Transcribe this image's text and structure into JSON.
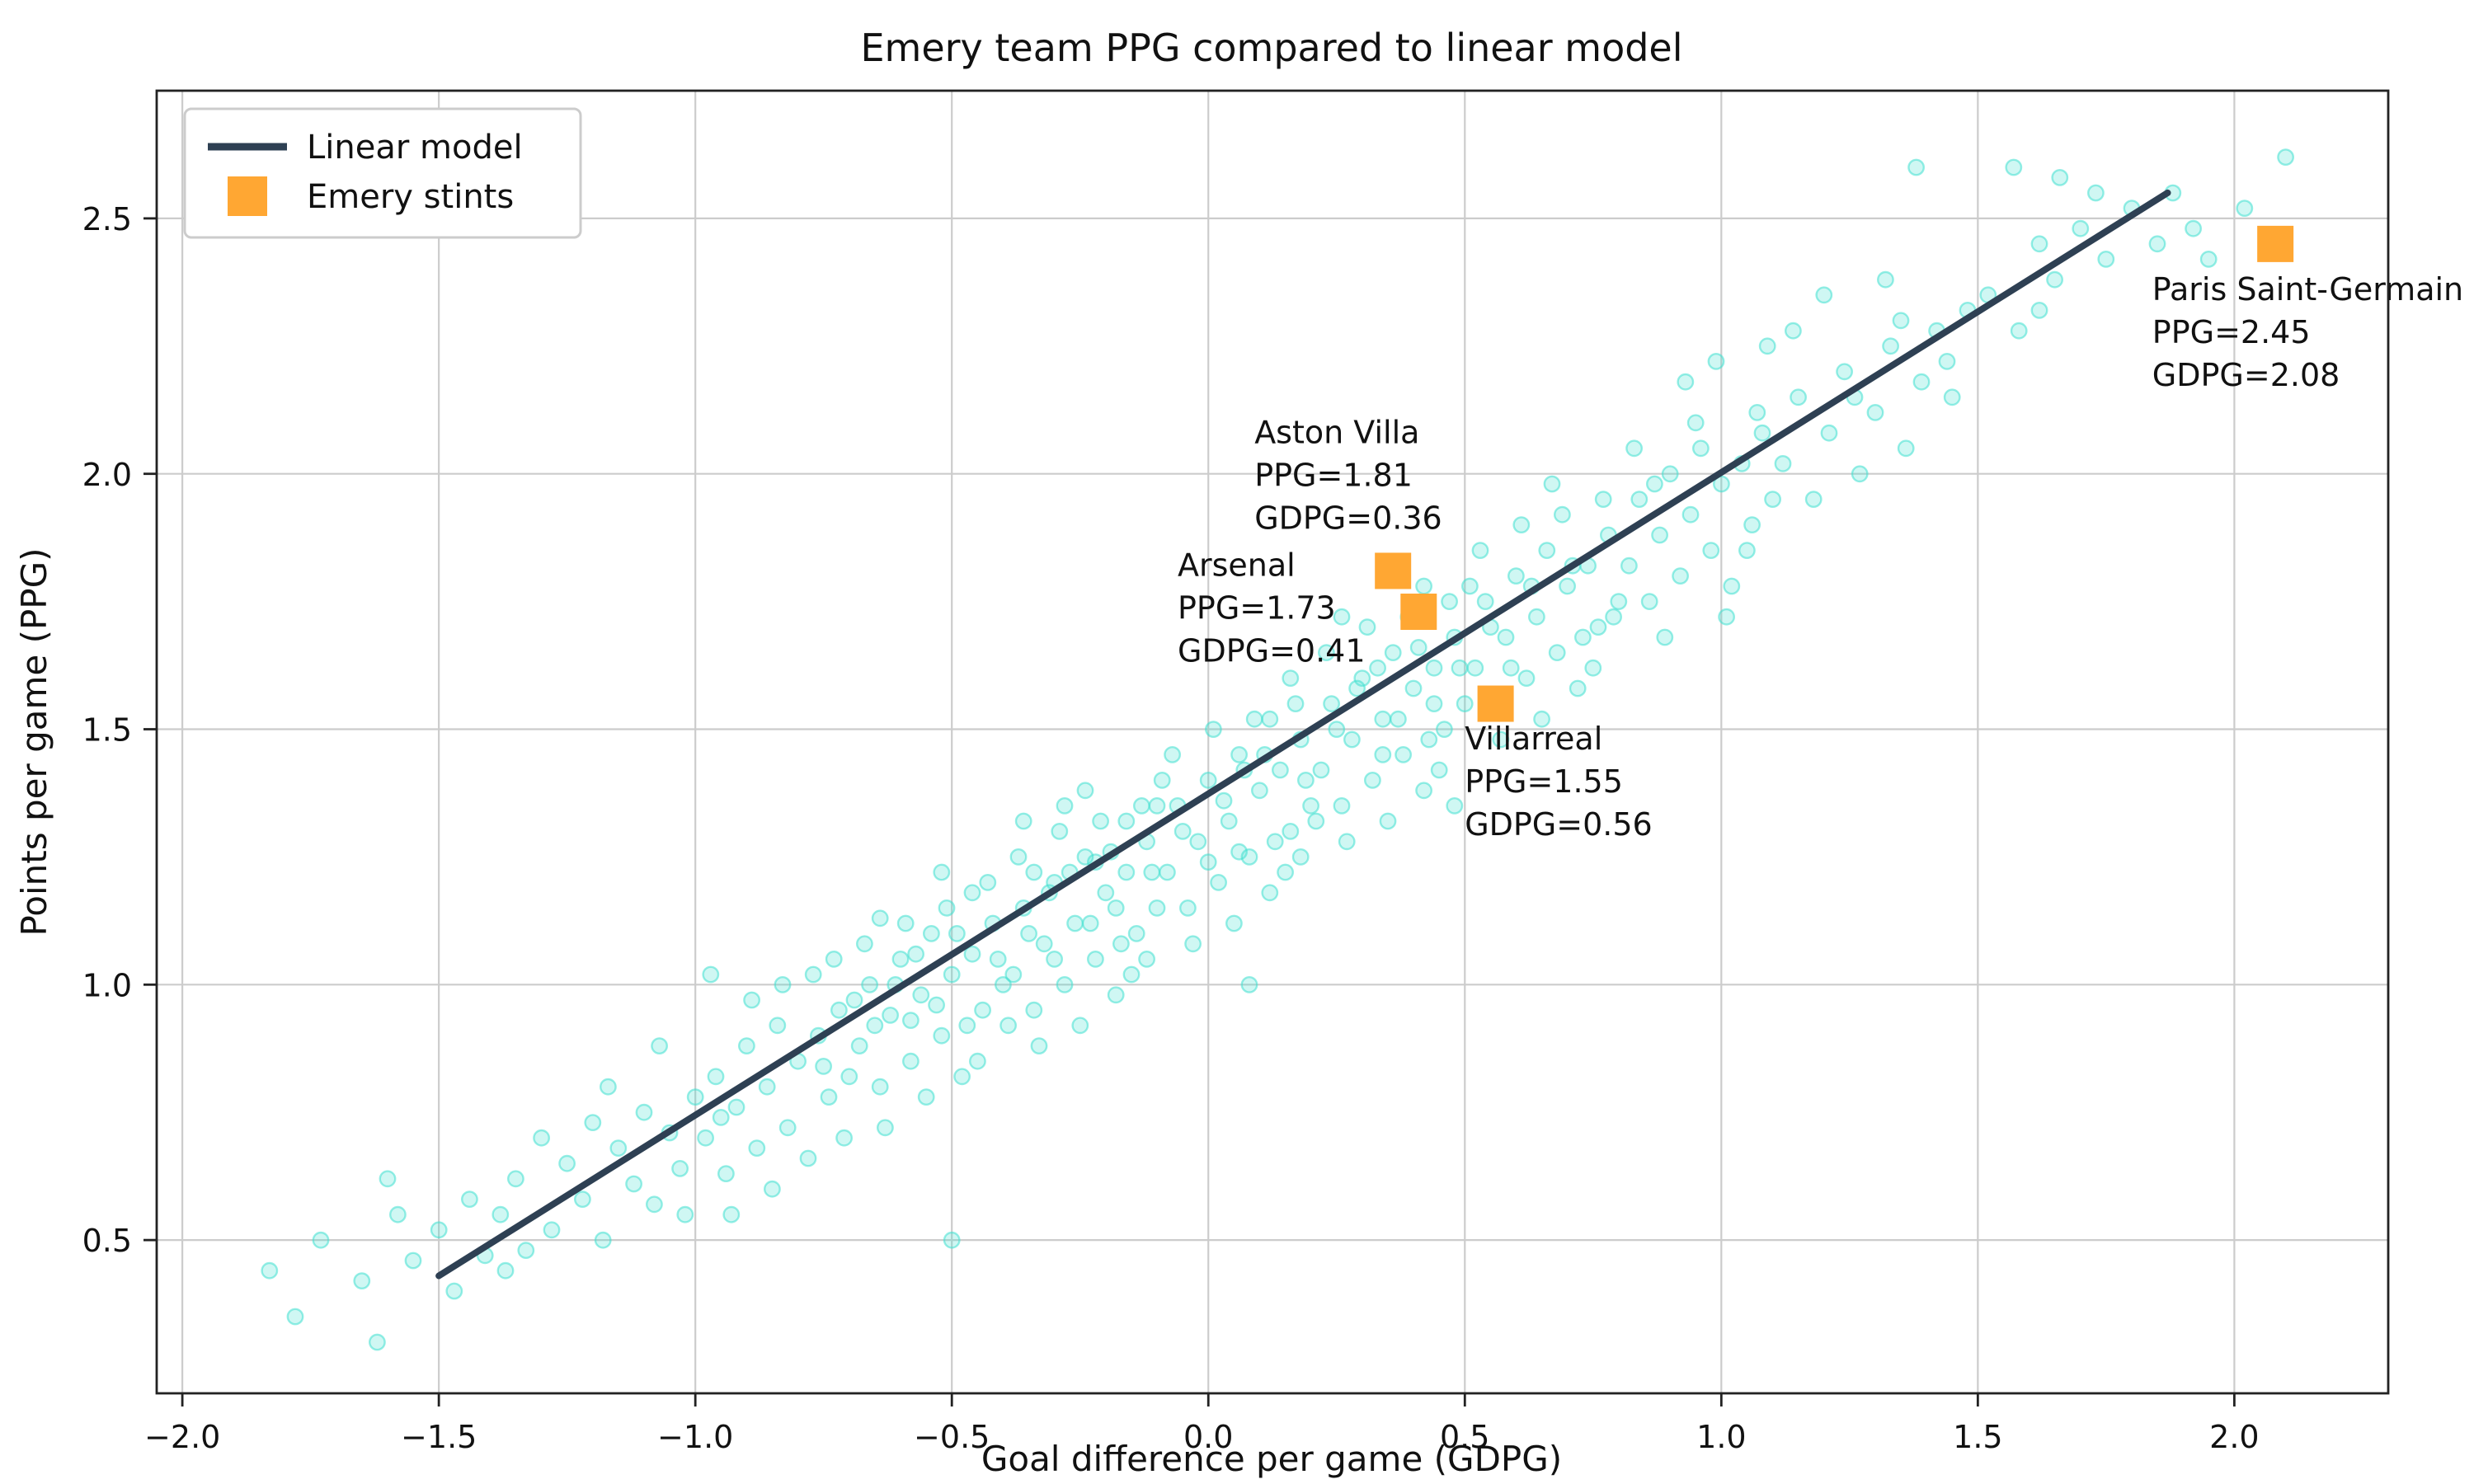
{
  "chart_data": {
    "type": "scatter",
    "title": "Emery team PPG compared to linear model",
    "xlabel": "Goal difference per game (GDPG)",
    "ylabel": "Points per game (PPG)",
    "xlim": [
      -2.05,
      2.3
    ],
    "ylim": [
      0.2,
      2.75
    ],
    "xticks": [
      -2.0,
      -1.5,
      -1.0,
      -0.5,
      0.0,
      0.5,
      1.0,
      1.5,
      2.0
    ],
    "xtick_labels": [
      "−2.0",
      "−1.5",
      "−1.0",
      "−0.5",
      "0.0",
      "0.5",
      "1.0",
      "1.5",
      "2.0"
    ],
    "yticks": [
      0.5,
      1.0,
      1.5,
      2.0,
      2.5
    ],
    "ytick_labels": [
      "0.5",
      "1.0",
      "1.5",
      "2.0",
      "2.5"
    ],
    "grid": true,
    "grid_color": "#cccccc",
    "spine_color": "#222222",
    "legend": {
      "position": "upper left",
      "entries": [
        {
          "label": "Linear model",
          "type": "line",
          "color": "#2e4053"
        },
        {
          "label": "Emery stints",
          "type": "square",
          "color": "#ffa733"
        }
      ]
    },
    "linear_model": {
      "color": "#2e4053",
      "slope": 0.63,
      "intercept": 1.375,
      "x": [
        -1.5,
        1.87
      ],
      "y": [
        0.43,
        2.55
      ]
    },
    "emery_stints": [
      {
        "team": "Aston Villa",
        "ppg": 1.81,
        "gdpg": 0.36,
        "label_lines": [
          "Aston Villa",
          "PPG=1.81",
          "GDPG=0.36"
        ],
        "label_anchor": [
          0.09,
          2.06
        ]
      },
      {
        "team": "Arsenal",
        "ppg": 1.73,
        "gdpg": 0.41,
        "label_lines": [
          "Arsenal",
          "PPG=1.73",
          "GDPG=0.41"
        ],
        "label_anchor": [
          -0.06,
          1.8
        ]
      },
      {
        "team": "Villarreal",
        "ppg": 1.55,
        "gdpg": 0.56,
        "label_lines": [
          "Villarreal",
          "PPG=1.55",
          "GDPG=0.56"
        ],
        "label_anchor": [
          0.5,
          1.46
        ]
      },
      {
        "team": "Paris Saint-Germain",
        "ppg": 2.45,
        "gdpg": 2.08,
        "label_lines": [
          "Paris Saint-Germain",
          "PPG=2.45",
          "GDPG=2.08"
        ],
        "label_anchor": [
          1.84,
          2.34
        ]
      }
    ],
    "stint_color": "#ffa733",
    "scatter": {
      "color": "#40e0d0",
      "alpha": 0.3,
      "points": [
        [
          -1.83,
          0.44
        ],
        [
          -1.78,
          0.35
        ],
        [
          -1.73,
          0.5
        ],
        [
          -1.65,
          0.42
        ],
        [
          -1.62,
          0.3
        ],
        [
          -1.58,
          0.55
        ],
        [
          -1.55,
          0.46
        ],
        [
          -1.5,
          0.52
        ],
        [
          -1.47,
          0.4
        ],
        [
          -1.44,
          0.58
        ],
        [
          -1.41,
          0.47
        ],
        [
          -1.6,
          0.62
        ],
        [
          -1.38,
          0.55
        ],
        [
          -1.35,
          0.62
        ],
        [
          -1.33,
          0.48
        ],
        [
          -1.3,
          0.7
        ],
        [
          -1.28,
          0.52
        ],
        [
          -1.25,
          0.65
        ],
        [
          -1.22,
          0.58
        ],
        [
          -1.2,
          0.73
        ],
        [
          -1.18,
          0.5
        ],
        [
          -1.15,
          0.68
        ],
        [
          -1.12,
          0.61
        ],
        [
          -1.1,
          0.75
        ],
        [
          -1.08,
          0.57
        ],
        [
          -1.05,
          0.71
        ],
        [
          -1.03,
          0.64
        ],
        [
          -1.0,
          0.78
        ],
        [
          -1.37,
          0.44
        ],
        [
          -1.17,
          0.8
        ],
        [
          -1.07,
          0.88
        ],
        [
          -1.02,
          0.55
        ],
        [
          -0.98,
          0.7
        ],
        [
          -0.96,
          0.82
        ],
        [
          -0.94,
          0.63
        ],
        [
          -0.92,
          0.76
        ],
        [
          -0.9,
          0.88
        ],
        [
          -0.88,
          0.68
        ],
        [
          -0.86,
          0.8
        ],
        [
          -0.84,
          0.92
        ],
        [
          -0.82,
          0.72
        ],
        [
          -0.8,
          0.85
        ],
        [
          -0.78,
          0.66
        ],
        [
          -0.76,
          0.9
        ],
        [
          -0.74,
          0.78
        ],
        [
          -0.72,
          0.95
        ],
        [
          -0.7,
          0.82
        ],
        [
          -0.97,
          1.02
        ],
        [
          -0.93,
          0.55
        ],
        [
          -0.89,
          0.97
        ],
        [
          -0.83,
          1.0
        ],
        [
          -0.77,
          1.02
        ],
        [
          -0.71,
          0.7
        ],
        [
          -0.95,
          0.74
        ],
        [
          -0.85,
          0.6
        ],
        [
          -0.75,
          0.84
        ],
        [
          -0.73,
          1.05
        ],
        [
          -0.68,
          0.88
        ],
        [
          -0.66,
          1.0
        ],
        [
          -0.64,
          0.8
        ],
        [
          -0.62,
          0.94
        ],
        [
          -0.6,
          1.05
        ],
        [
          -0.58,
          0.85
        ],
        [
          -0.56,
          0.98
        ],
        [
          -0.54,
          1.1
        ],
        [
          -0.52,
          0.9
        ],
        [
          -0.5,
          1.02
        ],
        [
          -0.48,
          0.82
        ],
        [
          -0.46,
          1.06
        ],
        [
          -0.44,
          0.95
        ],
        [
          -0.42,
          1.12
        ],
        [
          -0.4,
          1.0
        ],
        [
          -0.67,
          1.08
        ],
        [
          -0.63,
          0.72
        ],
        [
          -0.59,
          1.12
        ],
        [
          -0.55,
          0.78
        ],
        [
          -0.51,
          1.15
        ],
        [
          -0.47,
          0.92
        ],
        [
          -0.43,
          1.2
        ],
        [
          -0.65,
          0.92
        ],
        [
          -0.61,
          1.0
        ],
        [
          -0.57,
          1.06
        ],
        [
          -0.53,
          0.96
        ],
        [
          -0.49,
          1.1
        ],
        [
          -0.45,
          0.85
        ],
        [
          -0.41,
          1.05
        ],
        [
          -0.5,
          0.5
        ],
        [
          -0.69,
          0.97
        ],
        [
          -0.64,
          1.13
        ],
        [
          -0.58,
          0.93
        ],
        [
          -0.52,
          1.22
        ],
        [
          -0.46,
          1.18
        ],
        [
          -0.38,
          1.02
        ],
        [
          -0.36,
          1.15
        ],
        [
          -0.34,
          0.95
        ],
        [
          -0.32,
          1.08
        ],
        [
          -0.3,
          1.2
        ],
        [
          -0.28,
          1.0
        ],
        [
          -0.26,
          1.12
        ],
        [
          -0.24,
          1.25
        ],
        [
          -0.22,
          1.05
        ],
        [
          -0.2,
          1.18
        ],
        [
          -0.18,
          0.98
        ],
        [
          -0.16,
          1.22
        ],
        [
          -0.14,
          1.1
        ],
        [
          -0.12,
          1.28
        ],
        [
          -0.1,
          1.15
        ],
        [
          -0.37,
          1.25
        ],
        [
          -0.33,
          0.88
        ],
        [
          -0.29,
          1.3
        ],
        [
          -0.25,
          0.92
        ],
        [
          -0.21,
          1.32
        ],
        [
          -0.17,
          1.08
        ],
        [
          -0.13,
          1.35
        ],
        [
          -0.35,
          1.1
        ],
        [
          -0.31,
          1.18
        ],
        [
          -0.27,
          1.22
        ],
        [
          -0.23,
          1.12
        ],
        [
          -0.19,
          1.26
        ],
        [
          -0.15,
          1.02
        ],
        [
          -0.11,
          1.22
        ],
        [
          -0.39,
          0.92
        ],
        [
          -0.36,
          1.32
        ],
        [
          -0.3,
          1.05
        ],
        [
          -0.24,
          1.38
        ],
        [
          -0.18,
          1.15
        ],
        [
          -0.12,
          1.05
        ],
        [
          -0.34,
          1.22
        ],
        [
          -0.28,
          1.35
        ],
        [
          -0.22,
          1.24
        ],
        [
          -0.16,
          1.32
        ],
        [
          -0.1,
          1.35
        ],
        [
          -0.08,
          1.22
        ],
        [
          -0.06,
          1.35
        ],
        [
          -0.04,
          1.15
        ],
        [
          -0.02,
          1.28
        ],
        [
          0.0,
          1.4
        ],
        [
          0.02,
          1.2
        ],
        [
          0.04,
          1.32
        ],
        [
          0.06,
          1.45
        ],
        [
          0.08,
          1.25
        ],
        [
          0.1,
          1.38
        ],
        [
          0.12,
          1.18
        ],
        [
          0.14,
          1.42
        ],
        [
          0.16,
          1.3
        ],
        [
          0.18,
          1.48
        ],
        [
          0.2,
          1.35
        ],
        [
          -0.07,
          1.45
        ],
        [
          -0.03,
          1.08
        ],
        [
          0.01,
          1.5
        ],
        [
          0.05,
          1.12
        ],
        [
          0.09,
          1.52
        ],
        [
          0.13,
          1.28
        ],
        [
          0.17,
          1.55
        ],
        [
          -0.05,
          1.3
        ],
        [
          0.0,
          1.24
        ],
        [
          0.07,
          1.42
        ],
        [
          0.11,
          1.45
        ],
        [
          0.15,
          1.22
        ],
        [
          0.19,
          1.4
        ],
        [
          -0.09,
          1.4
        ],
        [
          0.03,
          1.36
        ],
        [
          0.08,
          1.0
        ],
        [
          0.16,
          1.6
        ],
        [
          0.12,
          1.52
        ],
        [
          0.06,
          1.26
        ],
        [
          0.18,
          1.25
        ],
        [
          0.22,
          1.42
        ],
        [
          0.24,
          1.55
        ],
        [
          0.26,
          1.35
        ],
        [
          0.28,
          1.48
        ],
        [
          0.3,
          1.6
        ],
        [
          0.32,
          1.4
        ],
        [
          0.34,
          1.52
        ],
        [
          0.36,
          1.65
        ],
        [
          0.38,
          1.45
        ],
        [
          0.4,
          1.58
        ],
        [
          0.42,
          1.38
        ],
        [
          0.44,
          1.62
        ],
        [
          0.46,
          1.5
        ],
        [
          0.48,
          1.68
        ],
        [
          0.5,
          1.55
        ],
        [
          0.23,
          1.65
        ],
        [
          0.27,
          1.28
        ],
        [
          0.31,
          1.7
        ],
        [
          0.35,
          1.32
        ],
        [
          0.39,
          1.72
        ],
        [
          0.43,
          1.48
        ],
        [
          0.47,
          1.75
        ],
        [
          0.25,
          1.5
        ],
        [
          0.29,
          1.58
        ],
        [
          0.33,
          1.62
        ],
        [
          0.37,
          1.52
        ],
        [
          0.41,
          1.66
        ],
        [
          0.45,
          1.42
        ],
        [
          0.49,
          1.62
        ],
        [
          0.21,
          1.32
        ],
        [
          0.26,
          1.72
        ],
        [
          0.34,
          1.45
        ],
        [
          0.42,
          1.78
        ],
        [
          0.48,
          1.35
        ],
        [
          0.44,
          1.55
        ],
        [
          0.52,
          1.62
        ],
        [
          0.54,
          1.75
        ],
        [
          0.56,
          1.55
        ],
        [
          0.58,
          1.68
        ],
        [
          0.6,
          1.8
        ],
        [
          0.62,
          1.6
        ],
        [
          0.64,
          1.72
        ],
        [
          0.66,
          1.85
        ],
        [
          0.68,
          1.65
        ],
        [
          0.7,
          1.78
        ],
        [
          0.72,
          1.58
        ],
        [
          0.74,
          1.82
        ],
        [
          0.76,
          1.7
        ],
        [
          0.78,
          1.88
        ],
        [
          0.8,
          1.75
        ],
        [
          0.53,
          1.85
        ],
        [
          0.57,
          1.48
        ],
        [
          0.61,
          1.9
        ],
        [
          0.65,
          1.52
        ],
        [
          0.69,
          1.92
        ],
        [
          0.73,
          1.68
        ],
        [
          0.77,
          1.95
        ],
        [
          0.55,
          1.7
        ],
        [
          0.63,
          1.78
        ],
        [
          0.71,
          1.82
        ],
        [
          0.79,
          1.72
        ],
        [
          0.59,
          1.62
        ],
        [
          0.67,
          1.98
        ],
        [
          0.75,
          1.62
        ],
        [
          0.51,
          1.78
        ],
        [
          0.82,
          1.82
        ],
        [
          0.84,
          1.95
        ],
        [
          0.86,
          1.75
        ],
        [
          0.88,
          1.88
        ],
        [
          0.9,
          2.0
        ],
        [
          0.92,
          1.8
        ],
        [
          0.94,
          1.92
        ],
        [
          0.96,
          2.05
        ],
        [
          0.98,
          1.85
        ],
        [
          1.0,
          1.98
        ],
        [
          1.02,
          1.78
        ],
        [
          1.04,
          2.02
        ],
        [
          1.06,
          1.9
        ],
        [
          1.08,
          2.08
        ],
        [
          1.1,
          1.95
        ],
        [
          0.83,
          2.05
        ],
        [
          0.89,
          1.68
        ],
        [
          0.95,
          2.1
        ],
        [
          1.01,
          1.72
        ],
        [
          1.07,
          2.12
        ],
        [
          0.87,
          1.98
        ],
        [
          0.93,
          2.18
        ],
        [
          0.99,
          2.22
        ],
        [
          1.05,
          1.85
        ],
        [
          1.09,
          2.25
        ],
        [
          1.12,
          2.02
        ],
        [
          1.15,
          2.15
        ],
        [
          1.18,
          1.95
        ],
        [
          1.21,
          2.08
        ],
        [
          1.24,
          2.2
        ],
        [
          1.27,
          2.0
        ],
        [
          1.3,
          2.12
        ],
        [
          1.33,
          2.25
        ],
        [
          1.36,
          2.05
        ],
        [
          1.39,
          2.18
        ],
        [
          1.42,
          2.28
        ],
        [
          1.45,
          2.15
        ],
        [
          1.48,
          2.32
        ],
        [
          1.14,
          2.28
        ],
        [
          1.2,
          2.35
        ],
        [
          1.26,
          2.15
        ],
        [
          1.32,
          2.38
        ],
        [
          1.38,
          2.6
        ],
        [
          1.44,
          2.22
        ],
        [
          1.35,
          2.3
        ],
        [
          1.52,
          2.35
        ],
        [
          1.57,
          2.6
        ],
        [
          1.58,
          2.28
        ],
        [
          1.62,
          2.45
        ],
        [
          1.66,
          2.58
        ],
        [
          1.65,
          2.38
        ],
        [
          1.7,
          2.48
        ],
        [
          1.75,
          2.42
        ],
        [
          1.8,
          2.52
        ],
        [
          1.85,
          2.45
        ],
        [
          1.88,
          2.55
        ],
        [
          1.92,
          2.48
        ],
        [
          1.62,
          2.32
        ],
        [
          1.73,
          2.55
        ],
        [
          1.95,
          2.42
        ],
        [
          2.02,
          2.52
        ],
        [
          2.1,
          2.62
        ]
      ]
    }
  }
}
